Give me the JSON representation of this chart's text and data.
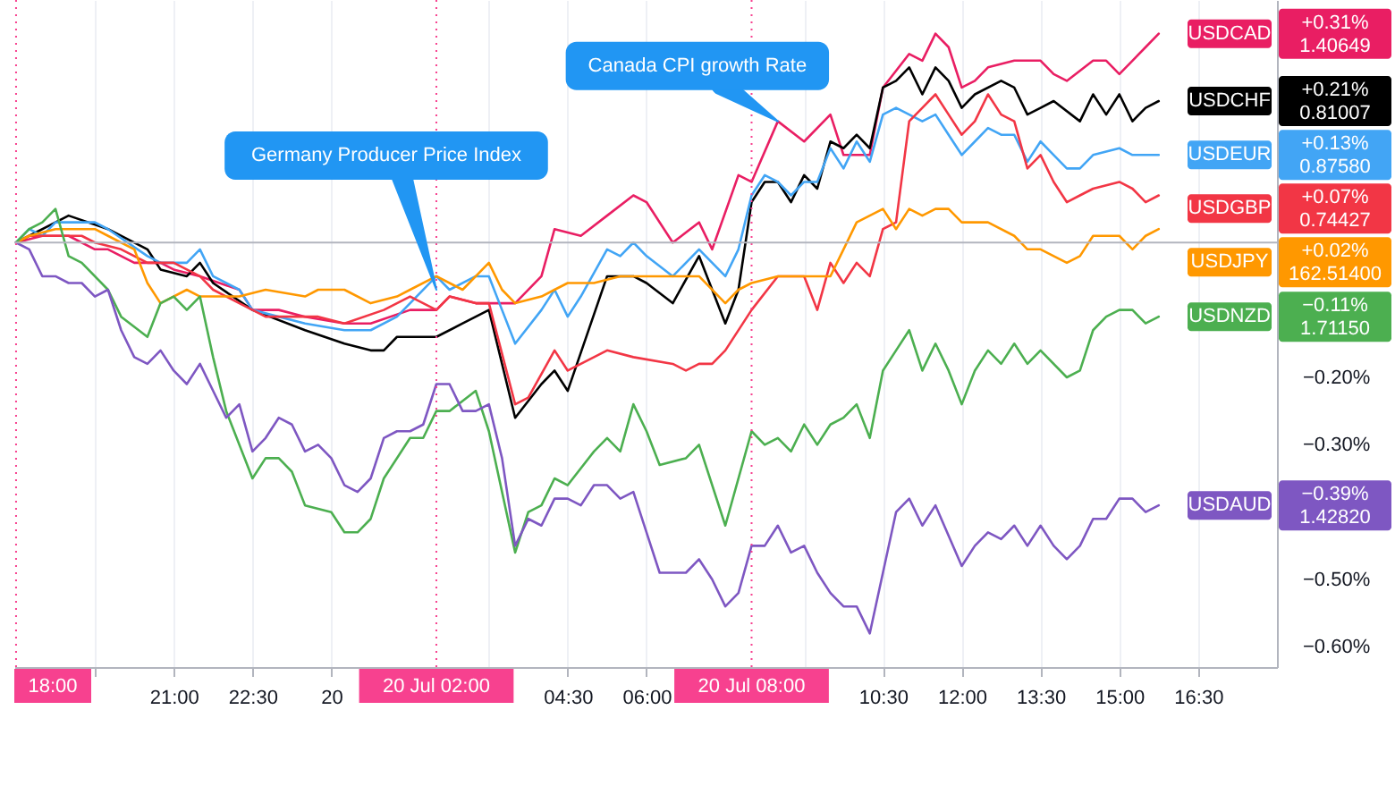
{
  "chart_data": {
    "type": "line",
    "xlim": [
      "--07-19T17:58",
      "--07-20T18:00"
    ],
    "ylim": [
      -0.63,
      0.36
    ],
    "xticks": [
      {
        "value": "--07-19T19:30",
        "label": null
      },
      {
        "value": "--07-19T21:00",
        "label": "21:00"
      },
      {
        "value": "--07-19T22:30",
        "label": "22:30"
      },
      {
        "value": "--07-20",
        "label": "20"
      },
      {
        "value": "--07-20T03:00",
        "label": null
      },
      {
        "value": "--07-20T04:30",
        "label": "04:30"
      },
      {
        "value": "--07-20T06:00",
        "label": "06:00"
      },
      {
        "value": "--07-20T09:00",
        "label": null
      },
      {
        "value": "--07-20T10:30",
        "label": "10:30"
      },
      {
        "value": "--07-20T12:00",
        "label": "12:00"
      },
      {
        "value": "--07-20T13:30",
        "label": "13:30"
      },
      {
        "value": "--07-20T15:00",
        "label": "15:00"
      },
      {
        "value": "--07-20T16:30",
        "label": "16:30"
      }
    ],
    "yticks": [
      {
        "value": -0.6,
        "label": "−0.60%"
      },
      {
        "value": -0.5,
        "label": "−0.50%"
      },
      {
        "value": -0.3,
        "label": "−0.30%"
      },
      {
        "value": -0.2,
        "label": "−0.20%"
      }
    ],
    "grid": "x",
    "series": [
      {
        "name": "USDCAD",
        "color": "#e91e63",
        "x": [
          "--07-19T18:00",
          "--07-19T18:30",
          "--07-19T19:00",
          "--07-19T19:30",
          "--07-19T19:45",
          "--07-19T20:15",
          "--07-19T20:45",
          "--07-19T21:00",
          "--07-19T21:30",
          "--07-19T22:15",
          "--07-19T22:30",
          "--07-19T23:00",
          "--07-19T23:30",
          "--07-20T00:15",
          "--07-20T00:45",
          "--07-20T01:30",
          "--07-20T02:00",
          "--07-20T02:15",
          "--07-20T02:45",
          "--07-20T03:00",
          "--07-20T03:30",
          "--07-20T04:00",
          "--07-20T04:15",
          "--07-20T04:45",
          "--07-20T05:15",
          "--07-20T05:45",
          "--07-20T06:00",
          "--07-20T06:30",
          "--07-20T07:00",
          "--07-20T07:15",
          "--07-20T07:45",
          "--07-20T08:00",
          "--07-20T08:30",
          "--07-20T09:00",
          "--07-20T09:30",
          "--07-20T09:45",
          "--07-20T10:15",
          "--07-20T10:30",
          "--07-20T11:00",
          "--07-20T11:15",
          "--07-20T11:30",
          "--07-20T11:45",
          "--07-20T12:00",
          "--07-20T12:15",
          "--07-20T12:30",
          "--07-20T13:00",
          "--07-20T13:15",
          "--07-20T13:30",
          "--07-20T13:45",
          "--07-20T14:00",
          "--07-20T14:30",
          "--07-20T14:45",
          "--07-20T15:00",
          "--07-20T15:15",
          "--07-20T15:30",
          "--07-20T15:45"
        ],
        "values": [
          0,
          0.01,
          0.01,
          -0.01,
          -0.01,
          -0.03,
          -0.03,
          -0.04,
          -0.05,
          -0.07,
          -0.1,
          -0.1,
          -0.11,
          -0.12,
          -0.12,
          -0.1,
          -0.1,
          -0.08,
          -0.09,
          -0.09,
          -0.09,
          -0.05,
          0.02,
          0.01,
          0.04,
          0.07,
          0.06,
          0.0,
          0.03,
          -0.01,
          0.1,
          0.09,
          0.18,
          0.15,
          0.19,
          0.13,
          0.13,
          0.23,
          0.28,
          0.27,
          0.31,
          0.29,
          0.23,
          0.24,
          0.26,
          0.27,
          0.27,
          0.27,
          0.25,
          0.24,
          0.27,
          0.27,
          0.25,
          0.27,
          0.29,
          0.31
        ]
      },
      {
        "name": "USDCHF",
        "color": "#000000",
        "x": [
          "--07-19T18:00",
          "--07-19T19:00",
          "--07-19T19:45",
          "--07-19T20:30",
          "--07-19T20:45",
          "--07-19T21:15",
          "--07-19T21:30",
          "--07-19T21:45",
          "--07-19T22:30",
          "--07-19T23:30",
          "--07-20T00:15",
          "--07-20T00:45",
          "--07-20T01:00",
          "--07-20T01:15",
          "--07-20T02:00",
          "--07-20T02:30",
          "--07-20T03:00",
          "--07-20T03:30",
          "--07-20T04:00",
          "--07-20T04:15",
          "--07-20T04:30",
          "--07-20T05:15",
          "--07-20T05:45",
          "--07-20T06:00",
          "--07-20T06:30",
          "--07-20T07:00",
          "--07-20T07:30",
          "--07-20T07:45",
          "--07-20T08:00",
          "--07-20T08:15",
          "--07-20T08:30",
          "--07-20T08:45",
          "--07-20T09:00",
          "--07-20T09:15",
          "--07-20T09:30",
          "--07-20T09:45",
          "--07-20T10:00",
          "--07-20T10:15",
          "--07-20T10:30",
          "--07-20T10:45",
          "--07-20T11:00",
          "--07-20T11:15",
          "--07-20T11:30",
          "--07-20T11:45",
          "--07-20T12:00",
          "--07-20T12:15",
          "--07-20T12:45",
          "--07-20T13:00",
          "--07-20T13:15",
          "--07-20T13:30",
          "--07-20T13:45",
          "--07-20T14:15",
          "--07-20T14:30",
          "--07-20T14:45",
          "--07-20T15:00",
          "--07-20T15:15",
          "--07-20T15:30",
          "--07-20T15:45"
        ],
        "values": [
          0,
          0.04,
          0.02,
          -0.01,
          -0.04,
          -0.05,
          -0.03,
          -0.06,
          -0.1,
          -0.13,
          -0.15,
          -0.16,
          -0.16,
          -0.14,
          -0.14,
          -0.12,
          -0.1,
          -0.26,
          -0.21,
          -0.19,
          -0.22,
          -0.05,
          -0.05,
          -0.06,
          -0.09,
          -0.02,
          -0.12,
          -0.07,
          0.06,
          0.09,
          0.09,
          0.06,
          0.1,
          0.08,
          0.15,
          0.14,
          0.16,
          0.14,
          0.23,
          0.24,
          0.26,
          0.22,
          0.26,
          0.24,
          0.2,
          0.22,
          0.24,
          0.23,
          0.19,
          0.2,
          0.21,
          0.18,
          0.22,
          0.19,
          0.22,
          0.18,
          0.2,
          0.21
        ]
      },
      {
        "name": "USDEUR",
        "color": "#42a5f5",
        "x": [
          "--07-19T18:00",
          "--07-19T18:15",
          "--07-19T18:30",
          "--07-19T18:45",
          "--07-19T19:30",
          "--07-19T19:45",
          "--07-19T20:30",
          "--07-19T20:45",
          "--07-19T21:00",
          "--07-19T21:15",
          "--07-19T21:30",
          "--07-19T21:45",
          "--07-19T22:15",
          "--07-19T22:30",
          "--07-19T23:30",
          "--07-20T00:15",
          "--07-20T00:45",
          "--07-20T01:15",
          "--07-20T01:30",
          "--07-20T02:00",
          "--07-20T02:15",
          "--07-20T02:45",
          "--07-20T03:00",
          "--07-20T03:15",
          "--07-20T03:30",
          "--07-20T04:00",
          "--07-20T04:15",
          "--07-20T04:30",
          "--07-20T04:45",
          "--07-20T05:15",
          "--07-20T05:30",
          "--07-20T05:45",
          "--07-20T06:00",
          "--07-20T06:30",
          "--07-20T07:00",
          "--07-20T07:15",
          "--07-20T07:30",
          "--07-20T07:45",
          "--07-20T08:00",
          "--07-20T08:15",
          "--07-20T08:30",
          "--07-20T08:45",
          "--07-20T09:00",
          "--07-20T09:15",
          "--07-20T09:30",
          "--07-20T09:45",
          "--07-20T10:00",
          "--07-20T10:15",
          "--07-20T10:30",
          "--07-20T10:45",
          "--07-20T11:00",
          "--07-20T11:15",
          "--07-20T11:30",
          "--07-20T11:45",
          "--07-20T12:00",
          "--07-20T12:15",
          "--07-20T12:30",
          "--07-20T12:45",
          "--07-20T13:00",
          "--07-20T13:15",
          "--07-20T13:30",
          "--07-20T13:45",
          "--07-20T14:00",
          "--07-20T14:15",
          "--07-20T14:30",
          "--07-20T15:00",
          "--07-20T15:15",
          "--07-20T15:45"
        ],
        "values": [
          0,
          0.02,
          0.01,
          0.03,
          0.03,
          0.02,
          -0.02,
          -0.03,
          -0.03,
          -0.03,
          -0.01,
          -0.05,
          -0.07,
          -0.1,
          -0.12,
          -0.13,
          -0.13,
          -0.11,
          -0.09,
          -0.05,
          -0.07,
          -0.05,
          -0.05,
          -0.1,
          -0.15,
          -0.1,
          -0.07,
          -0.11,
          -0.08,
          -0.01,
          -0.02,
          0.0,
          -0.02,
          -0.05,
          -0.01,
          -0.03,
          -0.05,
          -0.01,
          0.07,
          0.1,
          0.09,
          0.07,
          0.09,
          0.09,
          0.14,
          0.11,
          0.15,
          0.12,
          0.19,
          0.2,
          0.19,
          0.18,
          0.19,
          0.16,
          0.13,
          0.15,
          0.17,
          0.16,
          0.16,
          0.12,
          0.15,
          0.13,
          0.11,
          0.11,
          0.13,
          0.14,
          0.13,
          0.13
        ]
      },
      {
        "name": "USDGBP",
        "color": "#f23645",
        "x": [
          "--07-19T18:00",
          "--07-19T18:15",
          "--07-19T18:45",
          "--07-19T19:15",
          "--07-19T19:30",
          "--07-19T20:00",
          "--07-19T20:30",
          "--07-19T21:00",
          "--07-19T21:30",
          "--07-19T21:45",
          "--07-19T22:15",
          "--07-19T22:45",
          "--07-19T23:15",
          "--07-19T23:45",
          "--07-20T00:15",
          "--07-20T01:00",
          "--07-20T01:30",
          "--07-20T02:00",
          "--07-20T02:15",
          "--07-20T02:45",
          "--07-20T03:00",
          "--07-20T03:30",
          "--07-20T03:45",
          "--07-20T04:15",
          "--07-20T04:30",
          "--07-20T04:45",
          "--07-20T05:15",
          "--07-20T05:45",
          "--07-20T06:30",
          "--07-20T06:45",
          "--07-20T07:00",
          "--07-20T07:15",
          "--07-20T07:30",
          "--07-20T08:00",
          "--07-20T08:30",
          "--07-20T09:00",
          "--07-20T09:15",
          "--07-20T09:30",
          "--07-20T09:45",
          "--07-20T10:00",
          "--07-20T10:15",
          "--07-20T10:30",
          "--07-20T10:45",
          "--07-20T11:00",
          "--07-20T11:15",
          "--07-20T11:30",
          "--07-20T11:45",
          "--07-20T12:00",
          "--07-20T12:15",
          "--07-20T12:30",
          "--07-20T12:45",
          "--07-20T13:00",
          "--07-20T13:15",
          "--07-20T13:30",
          "--07-20T13:45",
          "--07-20T14:00",
          "--07-20T14:15",
          "--07-20T14:30",
          "--07-20T15:00",
          "--07-20T15:15",
          "--07-20T15:30",
          "--07-20T15:45"
        ],
        "values": [
          0,
          0.01,
          0.01,
          0.01,
          0.0,
          -0.01,
          -0.03,
          -0.03,
          -0.05,
          -0.07,
          -0.09,
          -0.11,
          -0.11,
          -0.11,
          -0.12,
          -0.1,
          -0.08,
          -0.1,
          -0.08,
          -0.09,
          -0.09,
          -0.24,
          -0.23,
          -0.16,
          -0.19,
          -0.18,
          -0.16,
          -0.17,
          -0.18,
          -0.19,
          -0.18,
          -0.18,
          -0.16,
          -0.1,
          -0.05,
          -0.05,
          -0.1,
          -0.03,
          -0.06,
          -0.03,
          -0.05,
          0.02,
          0.03,
          0.18,
          0.2,
          0.22,
          0.19,
          0.16,
          0.18,
          0.22,
          0.19,
          0.18,
          0.11,
          0.13,
          0.09,
          0.06,
          0.07,
          0.08,
          0.09,
          0.08,
          0.06,
          0.07
        ]
      },
      {
        "name": "USDJPY",
        "color": "#ff9800",
        "x": [
          "--07-19T18:00",
          "--07-19T18:15",
          "--07-19T18:45",
          "--07-19T19:30",
          "--07-19T19:45",
          "--07-19T20:15",
          "--07-19T20:30",
          "--07-19T20:45",
          "--07-19T21:15",
          "--07-19T21:30",
          "--07-19T22:00",
          "--07-19T22:15",
          "--07-19T22:45",
          "--07-19T23:30",
          "--07-19T23:45",
          "--07-20T00:15",
          "--07-20T00:45",
          "--07-20T01:15",
          "--07-20T01:30",
          "--07-20T02:00",
          "--07-20T02:15",
          "--07-20T02:30",
          "--07-20T03:00",
          "--07-20T03:15",
          "--07-20T03:30",
          "--07-20T04:00",
          "--07-20T04:15",
          "--07-20T04:30",
          "--07-20T05:00",
          "--07-20T05:30",
          "--07-20T06:15",
          "--07-20T07:00",
          "--07-20T07:30",
          "--07-20T07:45",
          "--07-20T08:00",
          "--07-20T08:30",
          "--07-20T09:00",
          "--07-20T09:30",
          "--07-20T09:45",
          "--07-20T10:00",
          "--07-20T10:15",
          "--07-20T10:30",
          "--07-20T10:45",
          "--07-20T11:00",
          "--07-20T11:15",
          "--07-20T11:30",
          "--07-20T11:45",
          "--07-20T12:00",
          "--07-20T12:15",
          "--07-20T12:30",
          "--07-20T13:00",
          "--07-20T13:15",
          "--07-20T13:30",
          "--07-20T13:45",
          "--07-20T14:00",
          "--07-20T14:15",
          "--07-20T14:30",
          "--07-20T15:00",
          "--07-20T15:15",
          "--07-20T15:30",
          "--07-20T15:45"
        ],
        "values": [
          0,
          0.01,
          0.02,
          0.02,
          0.01,
          -0.01,
          -0.06,
          -0.09,
          -0.07,
          -0.08,
          -0.08,
          -0.08,
          -0.07,
          -0.08,
          -0.07,
          -0.07,
          -0.09,
          -0.08,
          -0.07,
          -0.05,
          -0.06,
          -0.07,
          -0.03,
          -0.07,
          -0.09,
          -0.08,
          -0.07,
          -0.06,
          -0.06,
          -0.05,
          -0.05,
          -0.05,
          -0.09,
          -0.07,
          -0.06,
          -0.05,
          -0.05,
          -0.05,
          -0.01,
          0.03,
          0.04,
          0.05,
          0.02,
          0.05,
          0.04,
          0.05,
          0.05,
          0.03,
          0.03,
          0.03,
          0.01,
          -0.01,
          -0.01,
          -0.02,
          -0.03,
          -0.02,
          0.01,
          0.01,
          -0.01,
          0.01,
          0.02
        ]
      },
      {
        "name": "USDNZD",
        "color": "#4caf50",
        "x": [
          "--07-19T18:00",
          "--07-19T18:15",
          "--07-19T18:30",
          "--07-19T18:45",
          "--07-19T19:00",
          "--07-19T19:15",
          "--07-19T19:45",
          "--07-19T20:00",
          "--07-19T20:30",
          "--07-19T20:45",
          "--07-19T21:00",
          "--07-19T21:15",
          "--07-19T21:30",
          "--07-19T21:45",
          "--07-19T22:00",
          "--07-19T22:30",
          "--07-19T22:45",
          "--07-19T23:00",
          "--07-19T23:15",
          "--07-19T23:30",
          "--07-20T00:00",
          "--07-20T00:15",
          "--07-20T00:30",
          "--07-20T00:45",
          "--07-20T01:00",
          "--07-20T01:30",
          "--07-20T01:45",
          "--07-20T02:00",
          "--07-20T02:15",
          "--07-20T02:45",
          "--07-20T03:00",
          "--07-20T03:30",
          "--07-20T03:45",
          "--07-20T04:00",
          "--07-20T04:15",
          "--07-20T04:30",
          "--07-20T05:00",
          "--07-20T05:15",
          "--07-20T05:30",
          "--07-20T05:45",
          "--07-20T06:00",
          "--07-20T06:15",
          "--07-20T06:45",
          "--07-20T07:00",
          "--07-20T07:30",
          "--07-20T08:00",
          "--07-20T08:15",
          "--07-20T08:30",
          "--07-20T08:45",
          "--07-20T09:00",
          "--07-20T09:15",
          "--07-20T09:30",
          "--07-20T09:45",
          "--07-20T10:00",
          "--07-20T10:15",
          "--07-20T10:30",
          "--07-20T10:45",
          "--07-20T11:00",
          "--07-20T11:15",
          "--07-20T11:30",
          "--07-20T11:45",
          "--07-20T12:00",
          "--07-20T12:15",
          "--07-20T12:30",
          "--07-20T12:45",
          "--07-20T13:00",
          "--07-20T13:15",
          "--07-20T13:30",
          "--07-20T14:00",
          "--07-20T14:15",
          "--07-20T14:30",
          "--07-20T14:45",
          "--07-20T15:00",
          "--07-20T15:15",
          "--07-20T15:30",
          "--07-20T15:45"
        ],
        "values": [
          0,
          0.02,
          0.03,
          0.05,
          -0.02,
          -0.03,
          -0.07,
          -0.11,
          -0.14,
          -0.09,
          -0.08,
          -0.1,
          -0.08,
          -0.17,
          -0.25,
          -0.35,
          -0.32,
          -0.32,
          -0.34,
          -0.39,
          -0.4,
          -0.43,
          -0.43,
          -0.41,
          -0.35,
          -0.29,
          -0.29,
          -0.25,
          -0.25,
          -0.22,
          -0.28,
          -0.46,
          -0.4,
          -0.39,
          -0.35,
          -0.36,
          -0.31,
          -0.29,
          -0.31,
          -0.24,
          -0.28,
          -0.33,
          -0.32,
          -0.3,
          -0.42,
          -0.28,
          -0.3,
          -0.29,
          -0.31,
          -0.27,
          -0.3,
          -0.27,
          -0.26,
          -0.24,
          -0.29,
          -0.19,
          -0.16,
          -0.13,
          -0.19,
          -0.15,
          -0.19,
          -0.24,
          -0.19,
          -0.16,
          -0.18,
          -0.15,
          -0.18,
          -0.16,
          -0.2,
          -0.19,
          -0.13,
          -0.11,
          -0.1,
          -0.1,
          -0.12,
          -0.11
        ]
      },
      {
        "name": "USDAUD",
        "color": "#7e57c2",
        "x": [
          "--07-19T18:00",
          "--07-19T18:15",
          "--07-19T18:30",
          "--07-19T18:45",
          "--07-19T19:00",
          "--07-19T19:15",
          "--07-19T19:30",
          "--07-19T19:45",
          "--07-19T20:00",
          "--07-19T20:15",
          "--07-19T20:30",
          "--07-19T20:45",
          "--07-19T21:00",
          "--07-19T21:15",
          "--07-19T21:30",
          "--07-19T21:45",
          "--07-19T22:00",
          "--07-19T22:15",
          "--07-19T22:30",
          "--07-19T22:45",
          "--07-19T23:00",
          "--07-19T23:15",
          "--07-19T23:30",
          "--07-19T23:45",
          "--07-20T00:00",
          "--07-20T00:15",
          "--07-20T00:30",
          "--07-20T00:45",
          "--07-20T01:00",
          "--07-20T01:15",
          "--07-20T01:30",
          "--07-20T01:45",
          "--07-20T02:00",
          "--07-20T02:15",
          "--07-20T02:30",
          "--07-20T02:45",
          "--07-20T03:00",
          "--07-20T03:15",
          "--07-20T03:30",
          "--07-20T03:45",
          "--07-20T04:00",
          "--07-20T04:15",
          "--07-20T04:30",
          "--07-20T04:45",
          "--07-20T05:00",
          "--07-20T05:15",
          "--07-20T05:30",
          "--07-20T05:45",
          "--07-20T06:00",
          "--07-20T06:15",
          "--07-20T06:45",
          "--07-20T07:00",
          "--07-20T07:15",
          "--07-20T07:30",
          "--07-20T07:45",
          "--07-20T08:00",
          "--07-20T08:15",
          "--07-20T08:30",
          "--07-20T08:45",
          "--07-20T09:00",
          "--07-20T09:15",
          "--07-20T09:30",
          "--07-20T09:45",
          "--07-20T10:00",
          "--07-20T10:15",
          "--07-20T10:30",
          "--07-20T10:45",
          "--07-20T11:00",
          "--07-20T11:15",
          "--07-20T11:30",
          "--07-20T12:00",
          "--07-20T12:15",
          "--07-20T12:30",
          "--07-20T12:45",
          "--07-20T13:00",
          "--07-20T13:15",
          "--07-20T13:30",
          "--07-20T13:45",
          "--07-20T14:00",
          "--07-20T14:15",
          "--07-20T14:30",
          "--07-20T14:45",
          "--07-20T15:00",
          "--07-20T15:15",
          "--07-20T15:30",
          "--07-20T15:45"
        ],
        "values": [
          0,
          -0.01,
          -0.05,
          -0.05,
          -0.06,
          -0.06,
          -0.08,
          -0.07,
          -0.13,
          -0.17,
          -0.18,
          -0.16,
          -0.19,
          -0.21,
          -0.18,
          -0.22,
          -0.26,
          -0.24,
          -0.31,
          -0.29,
          -0.26,
          -0.27,
          -0.31,
          -0.3,
          -0.32,
          -0.36,
          -0.37,
          -0.35,
          -0.29,
          -0.28,
          -0.28,
          -0.27,
          -0.21,
          -0.21,
          -0.25,
          -0.25,
          -0.24,
          -0.32,
          -0.45,
          -0.41,
          -0.42,
          -0.38,
          -0.38,
          -0.39,
          -0.36,
          -0.36,
          -0.38,
          -0.37,
          -0.43,
          -0.49,
          -0.49,
          -0.47,
          -0.5,
          -0.54,
          -0.52,
          -0.45,
          -0.45,
          -0.42,
          -0.46,
          -0.45,
          -0.49,
          -0.52,
          -0.54,
          -0.54,
          -0.58,
          -0.49,
          -0.4,
          -0.38,
          -0.42,
          -0.39,
          -0.48,
          -0.45,
          -0.43,
          -0.44,
          -0.42,
          -0.45,
          -0.42,
          -0.45,
          -0.47,
          -0.45,
          -0.41,
          -0.41,
          -0.38,
          -0.38,
          -0.4,
          -0.39
        ]
      }
    ],
    "ref_lines": [
      {
        "axis": "x",
        "value": "--07-19T18:00",
        "label": "18:00",
        "color": "#f7418f",
        "line_style": "dotted"
      },
      {
        "axis": "x",
        "value": "--07-20T02:00",
        "label": "20 Jul 02:00",
        "color": "#f7418f",
        "line_style": "dotted"
      },
      {
        "axis": "x",
        "value": "--07-20T08:00",
        "label": "20 Jul 08:00",
        "color": "#f7418f",
        "line_style": "dotted"
      },
      {
        "axis": "y",
        "value": 0,
        "color": "#b2b5be",
        "line_style": "solid"
      }
    ],
    "annotations": [
      {
        "text": "Germany Producer Price Index",
        "x": "--07-20T02:00",
        "y": -0.07
      },
      {
        "text": "Canada CPI growth Rate",
        "x": "--07-20T08:30",
        "y": 0.18
      },
      "+0.31% 1.40649",
      "+0.21% 0.81007",
      "+0.13% 0.87580",
      "+0.07% 0.74427",
      "+0.02% 162.51400",
      "−0.11% 1.71150",
      "−0.39% 1.42820"
    ]
  }
}
